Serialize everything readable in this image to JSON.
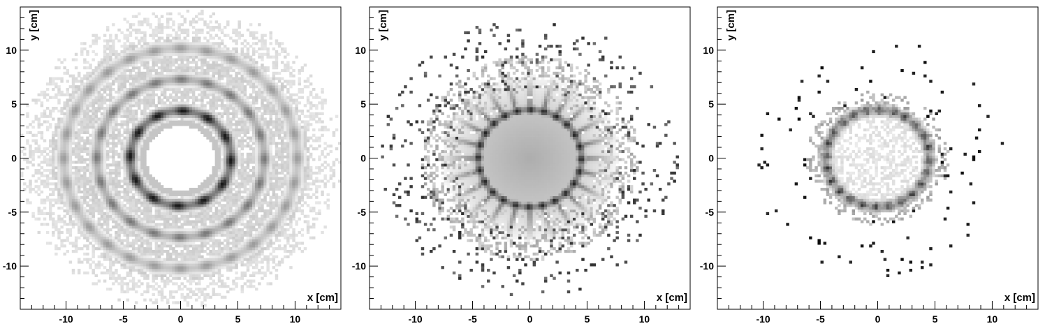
{
  "chart_data": [
    {
      "type": "heatmap",
      "panel": "left",
      "xlabel": "x [cm]",
      "ylabel": "y [cm]",
      "xlim": [
        -14,
        14
      ],
      "ylim": [
        -14,
        14
      ],
      "xticks": [
        -10,
        -5,
        0,
        5,
        10
      ],
      "yticks": [
        -10,
        -5,
        0,
        5,
        10
      ],
      "xtick_labels": [
        "-10",
        "-5",
        "0",
        "5",
        "10"
      ],
      "ytick_labels": [
        "-10",
        "-5",
        "0",
        "5",
        "10"
      ],
      "grid": false,
      "colormap": "grayscale",
      "features": {
        "hole_radius": 3.0,
        "inner_ring_radius": 4.4,
        "middle_ring_radius": 7.3,
        "outer_ring_radius": 10.2,
        "background_extent_radius": 13.5
      }
    },
    {
      "type": "heatmap",
      "panel": "middle",
      "xlabel": "x [cm]",
      "ylabel": "y [cm]",
      "xlim": [
        -14,
        14
      ],
      "ylim": [
        -14,
        14
      ],
      "xticks": [
        -10,
        -5,
        0,
        5,
        10
      ],
      "yticks": [
        -10,
        -5,
        0,
        5,
        10
      ],
      "xtick_labels": [
        "-10",
        "-5",
        "0",
        "5",
        "10"
      ],
      "ytick_labels": [
        "-10",
        "-5",
        "0",
        "5",
        "10"
      ],
      "grid": false,
      "colormap": "grayscale",
      "features": {
        "central_disk_radius": 4.5,
        "ring_radius": 4.5,
        "halo_radius": 8.0,
        "scatter_extent_radius": 13.0
      }
    },
    {
      "type": "heatmap",
      "panel": "right",
      "xlabel": "x [cm]",
      "ylabel": "y [cm]",
      "xlim": [
        -14,
        14
      ],
      "ylim": [
        -14,
        14
      ],
      "xticks": [
        -10,
        -5,
        0,
        5,
        10
      ],
      "yticks": [
        -10,
        -5,
        0,
        5,
        10
      ],
      "xtick_labels": [
        "-10",
        "-5",
        "0",
        "5",
        "10"
      ],
      "ytick_labels": [
        "-10",
        "-5",
        "0",
        "5",
        "10"
      ],
      "grid": false,
      "colormap": "grayscale",
      "features": {
        "ring_radius": 4.5,
        "scatter_extent_radius": 11.0
      }
    }
  ]
}
